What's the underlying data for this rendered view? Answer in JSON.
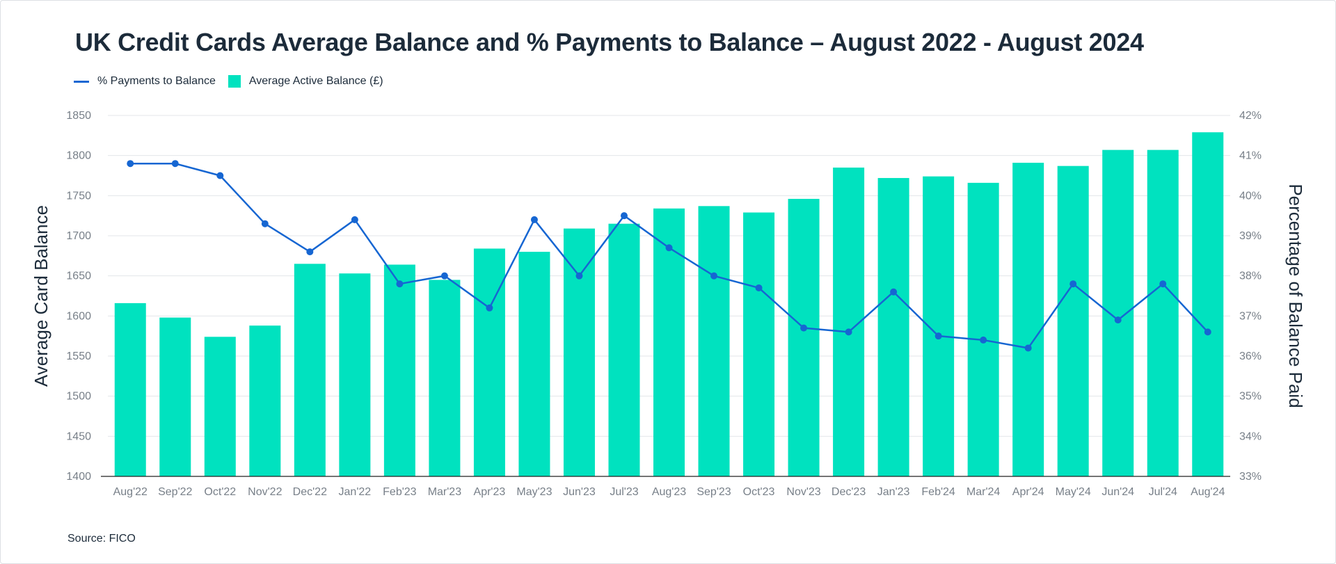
{
  "chart_data": {
    "type": "bar+line",
    "title": "UK Credit Cards Average Balance and % Payments to Balance – August 2022 - August 2024",
    "categories": [
      "Aug'22",
      "Sep'22",
      "Oct'22",
      "Nov'22",
      "Dec'22",
      "Jan'22",
      "Feb'23",
      "Mar'23",
      "Apr'23",
      "May'23",
      "Jun'23",
      "Jul'23",
      "Aug'23",
      "Sep'23",
      "Oct'23",
      "Nov'23",
      "Dec'23",
      "Jan'23",
      "Feb'24",
      "Mar'24",
      "Apr'24",
      "May'24",
      "Jun'24",
      "Jul'24",
      "Aug'24"
    ],
    "series": [
      {
        "name": "Average Active Balance (£)",
        "type": "bar",
        "axis": "left",
        "color": "#00e2bf",
        "values": [
          1616,
          1598,
          1574,
          1588,
          1665,
          1653,
          1664,
          1645,
          1684,
          1680,
          1709,
          1715,
          1734,
          1737,
          1729,
          1746,
          1785,
          1772,
          1774,
          1766,
          1791,
          1787,
          1807,
          1807,
          1829
        ]
      },
      {
        "name": "% Payments to Balance",
        "type": "line",
        "axis": "right",
        "color": "#1666d2",
        "values": [
          40.8,
          40.8,
          40.5,
          39.3,
          38.6,
          39.4,
          37.8,
          38.0,
          37.2,
          39.4,
          38.0,
          39.5,
          38.7,
          38.0,
          37.7,
          36.7,
          36.6,
          37.6,
          36.5,
          36.4,
          36.2,
          37.8,
          36.9,
          37.8,
          36.6
        ]
      }
    ],
    "ylabel": "Average Card Balance",
    "ylabel_right": "Percentage of Balance Paid",
    "ylim": [
      1400,
      1850
    ],
    "ylim_right": [
      33,
      42
    ],
    "yticks": [
      "1850",
      "1800",
      "1750",
      "1700",
      "1650",
      "1600",
      "1550",
      "1500",
      "1450",
      "1400"
    ],
    "yticks_right": [
      "42%",
      "41%",
      "40%",
      "39%",
      "38%",
      "37%",
      "36%",
      "35%",
      "34%",
      "33%"
    ],
    "grid": true,
    "legend_position": "top-left"
  },
  "legend": {
    "line_label": "% Payments to Balance",
    "bar_label": "Average Active Balance (£)"
  },
  "source": "Source: FICO"
}
